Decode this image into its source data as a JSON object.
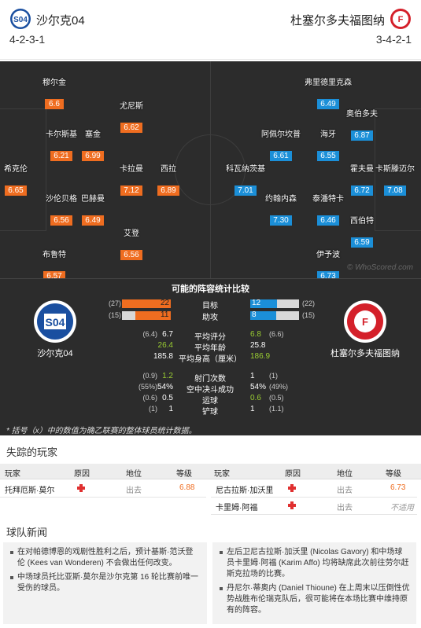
{
  "header": {
    "home": {
      "name": "沙尔克04",
      "formation": "4-2-3-1",
      "color": "#1a4fa0"
    },
    "away": {
      "name": "杜塞尔多夫福图纳",
      "formation": "3-4-2-1",
      "color": "#d4202a"
    }
  },
  "pitch": {
    "home_players": [
      {
        "name": "穆尔金",
        "rating": "6.6"
      },
      {
        "name": "尤尼斯",
        "rating": "6.62"
      },
      {
        "name": "卡尔斯基",
        "rating": "6.21"
      },
      {
        "name": "塞金",
        "rating": "6.99"
      },
      {
        "name": "希克伦",
        "rating": "6.65"
      },
      {
        "name": "卡拉曼",
        "rating": "7.12"
      },
      {
        "name": "西拉",
        "rating": "6.89"
      },
      {
        "name": "沙伦贝格",
        "rating": "6.56"
      },
      {
        "name": "巴赫曼",
        "rating": "6.49"
      },
      {
        "name": "艾登",
        "rating": "6.56"
      },
      {
        "name": "布鲁特",
        "rating": "6.57"
      }
    ],
    "away_players": [
      {
        "name": "弗里德里克森",
        "rating": "6.49"
      },
      {
        "name": "奥伯多夫",
        "rating": "6.87"
      },
      {
        "name": "阿佩尔坎普",
        "rating": "6.61"
      },
      {
        "name": "海牙",
        "rating": "6.55"
      },
      {
        "name": "科瓦纳茨基",
        "rating": "7.01"
      },
      {
        "name": "霍夫曼",
        "rating": "6.72"
      },
      {
        "name": "卡斯滕迈尔",
        "rating": "7.08"
      },
      {
        "name": "约翰内森",
        "rating": "7.30"
      },
      {
        "name": "泰潘特卡",
        "rating": "6.46"
      },
      {
        "name": "西伯特",
        "rating": "6.59"
      },
      {
        "name": "伊予波",
        "rating": "6.73"
      }
    ],
    "watermark": "© WhoScored.com"
  },
  "comparison": {
    "title": "可能的阵容统计比较",
    "home_name": "沙尔克04",
    "away_name": "杜塞尔多夫福图纳",
    "bars": [
      {
        "label": "目标",
        "home": 22,
        "home_prev": "(27)",
        "away": 12,
        "away_prev": "(22)",
        "max": 22
      },
      {
        "label": "助攻",
        "home": 11,
        "home_prev": "(15)",
        "away": 8,
        "away_prev": "(15)",
        "max": 15
      }
    ],
    "stats1": [
      {
        "label": "平均评分",
        "home_prev": "(6.4)",
        "home": "6.7",
        "away": "6.8",
        "away_prev": "(6.6)",
        "better": "away"
      },
      {
        "label": "平均年龄",
        "home_prev": "",
        "home": "26.4",
        "away": "25.8",
        "away_prev": "",
        "better": "home"
      },
      {
        "label": "平均身高（厘米）",
        "home_prev": "",
        "home": "185.8",
        "away": "186.9",
        "away_prev": "",
        "better": "away"
      }
    ],
    "stats2": [
      {
        "label": "射门次数",
        "home_prev": "(0.9)",
        "home": "1.2",
        "away": "1",
        "away_prev": "(1)",
        "better": "home"
      },
      {
        "label": "空中决斗成功",
        "home_prev": "(55%)",
        "home": "54%",
        "away": "54%",
        "away_prev": "(49%)",
        "better": "none"
      },
      {
        "label": "运球",
        "home_prev": "(0.6)",
        "home": "0.5",
        "away": "0.6",
        "away_prev": "(0.5)",
        "better": "away"
      },
      {
        "label": "铲球",
        "home_prev": "(1)",
        "home": "1",
        "away": "1",
        "away_prev": "(1.1)",
        "better": "none"
      }
    ],
    "note": "* 括号（x）中的数值为确乙联赛的整体球员统计数据。"
  },
  "missing": {
    "title": "失踪的玩家",
    "headers": {
      "player": "玩家",
      "reason": "原因",
      "position": "地位",
      "rating": "等级"
    },
    "home": [
      {
        "player": "托拜厄斯·莫尔",
        "reason_icon": "injury-icon",
        "position": "出去",
        "rating": "6.88"
      }
    ],
    "away": [
      {
        "player": "尼古拉斯·加沃里",
        "reason_icon": "injury-icon",
        "position": "出去",
        "rating": "6.73"
      },
      {
        "player": "卡里姆·阿福",
        "reason_icon": "injury-icon",
        "position": "出去",
        "rating": "不适用"
      }
    ]
  },
  "news": {
    "title": "球队新闻",
    "home": [
      "在对帕德博恩的戏剧性胜利之后，预计基斯·范沃登伦 (Kees van Wonderen) 不会做出任何改变。",
      "中场球员托比亚斯·莫尔是沙尔克第 16 轮比赛前唯一受伤的球员。"
    ],
    "away": [
      "左后卫尼古拉斯·加沃里 (Nicolas Gavory) 和中场球员卡里姆·阿福 (Karim Affo) 均将缺席此次前往劳尔赶斯克拉场的比赛。",
      "丹尼尔·蒂奥内 (Daniel Thioune) 在上周末以压倒性优势战胜布伦瑞克队后，很可能将在本场比赛中维持原有的阵容。"
    ]
  }
}
